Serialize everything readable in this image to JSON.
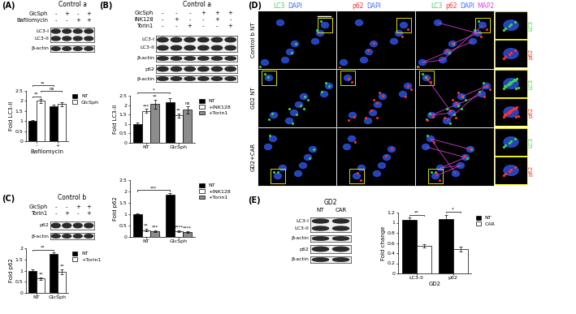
{
  "panels": [
    {
      "label": "(A)",
      "condition": "Control a",
      "treatments": [
        {
          "name": "GlcSph",
          "signs": [
            "-",
            "+",
            "-",
            "+"
          ]
        },
        {
          "name": "Bafilomycin",
          "signs": [
            "-",
            "-",
            "+",
            "+"
          ]
        }
      ],
      "blots": [
        [
          "LC3-I",
          "LC3-II"
        ],
        [
          "β-actin"
        ]
      ]
    },
    {
      "label": "(B)",
      "condition": "Control a",
      "treatments": [
        {
          "name": "GlcSph",
          "signs": [
            "-",
            "-",
            "-",
            "+",
            "+",
            "+"
          ]
        },
        {
          "name": "INK128",
          "signs": [
            "-",
            "+",
            "-",
            "-",
            "+",
            "-"
          ]
        },
        {
          "name": "Torin1",
          "signs": [
            "-",
            "-",
            "+",
            "-",
            "-",
            "+"
          ]
        }
      ],
      "blots": [
        [
          "LC3-I",
          "LC3-II"
        ],
        [
          "β-actin"
        ],
        [
          "p62"
        ],
        [
          "β-actin"
        ]
      ]
    },
    {
      "label": "(C)",
      "condition": "Control b",
      "treatments": [
        {
          "name": "GlcSph",
          "signs": [
            "-",
            "-",
            "+",
            "+"
          ]
        },
        {
          "name": "Torin1",
          "signs": [
            "-",
            "+",
            "-",
            "+"
          ]
        }
      ],
      "blots": [
        [
          "p62"
        ],
        [
          "β-actin"
        ]
      ]
    },
    {
      "label": "(E)",
      "condition": "GD2",
      "lanes": [
        "NT",
        "CAR"
      ],
      "blots": [
        [
          "LC3-I",
          "LC3-II"
        ],
        [
          "β-actin"
        ],
        [
          "p62"
        ],
        [
          "β-actin"
        ]
      ]
    }
  ],
  "microscopy": {
    "label": "(D)",
    "rows": [
      "Control b NT",
      "GD2 NT",
      "GD2+CAR"
    ],
    "columns": [
      [
        {
          "text": "LC3",
          "color": "#39d353"
        },
        {
          "text": "DAPI",
          "color": "#3b6cff"
        }
      ],
      [
        {
          "text": "p62",
          "color": "#ff3030"
        },
        {
          "text": "DAPI",
          "color": "#3b6cff"
        }
      ],
      [
        {
          "text": "LC3",
          "color": "#39d353"
        },
        {
          "text": "p62",
          "color": "#ff3030"
        },
        {
          "text": "DAPI",
          "color": "#3b6cff"
        },
        {
          "text": "MAP2",
          "color": "#e040e0"
        }
      ]
    ],
    "zoom_labels": [
      {
        "text": "LC3",
        "color": "#39d353"
      },
      {
        "text": "p62",
        "color": "#ff3030"
      }
    ]
  },
  "chart_data": [
    {
      "type": "bar",
      "y_label": "Fold LC3-II",
      "x_label": "Bafilomycin",
      "categories": [
        "-",
        "+"
      ],
      "series": [
        {
          "name": "NT",
          "color": "#000000",
          "values": [
            1.0,
            1.75
          ],
          "errors": [
            0.05,
            0.08
          ]
        },
        {
          "name": "GlcSph",
          "color": "#ffffff",
          "values": [
            2.0,
            1.85
          ],
          "errors": [
            0.1,
            0.1
          ]
        }
      ],
      "ylim": [
        0,
        2.5
      ],
      "yticks": [
        0,
        0.5,
        1,
        1.5,
        2,
        2.5
      ],
      "legend": "upper left",
      "brackets": [
        {
          "a": [
            0,
            0
          ],
          "b": [
            1,
            0
          ],
          "text": "**"
        },
        {
          "a": [
            1,
            0
          ],
          "b": [
            1,
            1
          ],
          "text": "ns"
        },
        {
          "a": [
            0,
            0
          ],
          "b": [
            0,
            1
          ],
          "text": "**"
        }
      ]
    },
    {
      "type": "bar",
      "y_label": "Fold LC3-II",
      "categories": [
        "NT",
        "GlcSph"
      ],
      "series": [
        {
          "name": "NT",
          "color": "#000000",
          "values": [
            1.0,
            2.15
          ],
          "errors": [
            0.07,
            0.2
          ]
        },
        {
          "name": "+INK128",
          "color": "#ffffff",
          "values": [
            1.7,
            1.45
          ],
          "errors": [
            0.1,
            0.1
          ],
          "stars": [
            "***",
            "**"
          ]
        },
        {
          "name": "+Torin1",
          "color": "#8c8c8c",
          "values": [
            2.05,
            1.75
          ],
          "errors": [
            0.25,
            0.2
          ],
          "stars": [
            "**",
            "ns"
          ]
        }
      ],
      "ylim": [
        0,
        2.5
      ],
      "yticks": [
        0,
        0.5,
        1,
        1.5,
        2,
        2.5
      ],
      "legend": "upper left",
      "brackets": [
        {
          "a": [
            0,
            0
          ],
          "b": [
            0,
            1
          ],
          "text": "*"
        }
      ]
    },
    {
      "type": "bar",
      "y_label": "Fold p62",
      "categories": [
        "NT",
        "GlcSph"
      ],
      "series": [
        {
          "name": "NT",
          "color": "#000000",
          "values": [
            1.0,
            1.85
          ],
          "errors": [
            0.05,
            0.08
          ]
        },
        {
          "name": "+INK128",
          "color": "#ffffff",
          "values": [
            0.3,
            0.25
          ],
          "errors": [
            0.05,
            0.03
          ],
          "stars": [
            "**",
            "****"
          ]
        },
        {
          "name": "+Torin1",
          "color": "#8c8c8c",
          "values": [
            0.25,
            0.22
          ],
          "errors": [
            0.05,
            0.03
          ],
          "stars": [
            "***",
            "****"
          ]
        }
      ],
      "ylim": [
        0,
        2.5
      ],
      "yticks": [
        0,
        0.5,
        1,
        1.5,
        2,
        2.5
      ],
      "legend": "upper left",
      "brackets": [
        {
          "a": [
            0,
            0
          ],
          "b": [
            0,
            1
          ],
          "text": "***"
        }
      ]
    },
    {
      "type": "bar",
      "y_label": "Fold p62",
      "categories": [
        "NT",
        "GlcSph"
      ],
      "series": [
        {
          "name": "NT",
          "color": "#000000",
          "values": [
            1.0,
            1.75
          ],
          "errors": [
            0.05,
            0.08
          ]
        },
        {
          "name": "+Torin1",
          "color": "#ffffff",
          "values": [
            0.65,
            0.95
          ],
          "errors": [
            0.05,
            0.1
          ],
          "stars": [
            "**",
            "**"
          ]
        }
      ],
      "ylim": [
        0,
        2
      ],
      "yticks": [
        0,
        0.5,
        1,
        1.5,
        2
      ],
      "legend": "upper left",
      "brackets": [
        {
          "a": [
            0,
            0
          ],
          "b": [
            0,
            1
          ],
          "text": "**"
        }
      ]
    },
    {
      "type": "bar",
      "y_label": "Fold change",
      "x_label": "GD2",
      "categories": [
        "LC3-II",
        "p62"
      ],
      "series": [
        {
          "name": "NT",
          "color": "#000000",
          "values": [
            1.05,
            1.08
          ],
          "errors": [
            0.05,
            0.08
          ]
        },
        {
          "name": "CAR",
          "color": "#ffffff",
          "values": [
            0.55,
            0.48
          ],
          "errors": [
            0.03,
            0.05
          ]
        }
      ],
      "ylim": [
        0,
        1.2
      ],
      "yticks": [
        0,
        0.2,
        0.4,
        0.6,
        0.8,
        1,
        1.2
      ],
      "legend": "upper left",
      "brackets": [
        {
          "a": [
            0,
            0
          ],
          "b": [
            1,
            0
          ],
          "text": "**"
        },
        {
          "a": [
            0,
            1
          ],
          "b": [
            1,
            1
          ],
          "text": "*"
        }
      ]
    }
  ]
}
